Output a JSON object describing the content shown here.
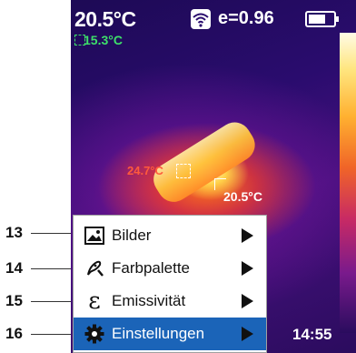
{
  "screen": {
    "temp_max": "20.5°C",
    "temp_min": "15.3°C",
    "emissivity": "e=0.96",
    "cursor_reading": "24.7°C",
    "spot_reading": "20.5°C",
    "time": "14:55",
    "misc": ":",
    "icons": [
      "wifi-icon",
      "battery-icon"
    ],
    "battery_level_fraction": 0.7
  },
  "menu": {
    "items": [
      {
        "label": "Bilder",
        "icon": "image-icon"
      },
      {
        "label": "Farbpalette",
        "icon": "palette-icon"
      },
      {
        "label": "Emissivität",
        "icon": "emissivity-icon",
        "icon_glyph": "ε"
      },
      {
        "label": "Einstellungen",
        "icon": "gear-icon"
      }
    ],
    "active_index": 3,
    "active_color": "#1b64b8"
  },
  "callouts": [
    "13",
    "14",
    "15",
    "16"
  ]
}
